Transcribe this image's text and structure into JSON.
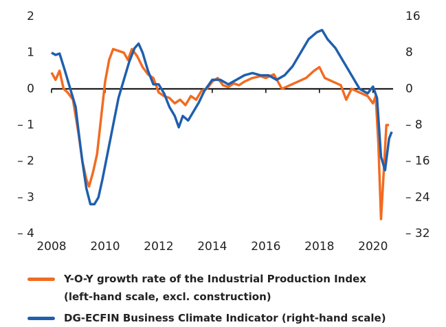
{
  "chart_data": {
    "type": "line",
    "xlim": [
      2008,
      2020.75
    ],
    "xticks": [
      2008,
      2010,
      2012,
      2014,
      2016,
      2018,
      2020
    ],
    "ylim": [
      -4,
      2
    ],
    "yticks": [
      {
        "value": -4,
        "label": "– 4"
      },
      {
        "value": -3,
        "label": "– 3"
      },
      {
        "value": -2,
        "label": "– 2"
      },
      {
        "value": -1,
        "label": "– 1"
      },
      0,
      1,
      2
    ],
    "y2lim": [
      -32,
      16
    ],
    "y2ticks": [
      {
        "value": -32,
        "label": "– 32"
      },
      {
        "value": -24,
        "label": "– 24"
      },
      {
        "value": -16,
        "label": "– 16"
      },
      {
        "value": -8,
        "label": "– 8"
      },
      0,
      8,
      16
    ],
    "series": [
      {
        "name": "Y-O-Y growth rate of the Industrial Production Index\n(left-hand scale, excl. construction)",
        "color": "#f26b21",
        "axis": "y",
        "x": [
          2008.0,
          2008.15,
          2008.3,
          2008.45,
          2008.6,
          2008.8,
          2009.0,
          2009.15,
          2009.3,
          2009.4,
          2009.55,
          2009.7,
          2009.85,
          2010.0,
          2010.15,
          2010.3,
          2010.5,
          2010.7,
          2010.85,
          2011.0,
          2011.2,
          2011.4,
          2011.6,
          2011.8,
          2012.0,
          2012.2,
          2012.4,
          2012.6,
          2012.8,
          2013.0,
          2013.2,
          2013.4,
          2013.6,
          2013.8,
          2014.0,
          2014.2,
          2014.4,
          2014.6,
          2014.8,
          2015.0,
          2015.2,
          2015.5,
          2015.8,
          2016.0,
          2016.3,
          2016.6,
          2016.9,
          2017.2,
          2017.5,
          2017.8,
          2018.0,
          2018.2,
          2018.5,
          2018.8,
          2019.0,
          2019.2,
          2019.5,
          2019.8,
          2020.0,
          2020.1,
          2020.2,
          2020.3,
          2020.4,
          2020.5,
          2020.6
        ],
        "values": [
          0.45,
          0.25,
          0.5,
          0.0,
          -0.1,
          -0.3,
          -1.2,
          -2.0,
          -2.5,
          -2.7,
          -2.3,
          -1.8,
          -0.8,
          0.2,
          0.8,
          1.1,
          1.05,
          1.0,
          0.8,
          1.1,
          0.9,
          0.6,
          0.4,
          0.3,
          -0.1,
          -0.2,
          -0.25,
          -0.4,
          -0.3,
          -0.45,
          -0.2,
          -0.3,
          -0.05,
          0.0,
          0.2,
          0.3,
          0.1,
          0.05,
          0.15,
          0.1,
          0.2,
          0.3,
          0.35,
          0.3,
          0.4,
          0.0,
          0.1,
          0.2,
          0.3,
          0.5,
          0.6,
          0.3,
          0.2,
          0.1,
          -0.3,
          0.0,
          -0.1,
          -0.2,
          -0.4,
          -0.2,
          -1.5,
          -3.6,
          -2.3,
          -1.0,
          -1.0
        ]
      },
      {
        "name": "DG-ECFIN Business Climate Indicator (right-hand scale)",
        "color": "#1f5fad",
        "axis": "y2",
        "x": [
          2008.0,
          2008.15,
          2008.3,
          2008.5,
          2008.7,
          2008.9,
          2009.0,
          2009.15,
          2009.3,
          2009.45,
          2009.6,
          2009.75,
          2009.9,
          2010.1,
          2010.3,
          2010.5,
          2010.7,
          2010.9,
          2011.1,
          2011.25,
          2011.4,
          2011.6,
          2011.8,
          2012.0,
          2012.2,
          2012.4,
          2012.6,
          2012.75,
          2012.9,
          2013.1,
          2013.3,
          2013.5,
          2013.7,
          2014.0,
          2014.3,
          2014.6,
          2014.9,
          2015.2,
          2015.5,
          2015.8,
          2016.1,
          2016.4,
          2016.7,
          2017.0,
          2017.3,
          2017.6,
          2017.9,
          2018.1,
          2018.3,
          2018.6,
          2018.9,
          2019.2,
          2019.5,
          2019.8,
          2020.0,
          2020.15,
          2020.3,
          2020.45,
          2020.6,
          2020.7
        ],
        "values": [
          8,
          7.5,
          7.8,
          4,
          0,
          -4,
          -9,
          -16,
          -22,
          -25.5,
          -25.5,
          -24,
          -20,
          -14,
          -8,
          -2,
          2,
          6,
          9,
          10,
          8,
          4,
          1,
          1,
          -1,
          -4,
          -6,
          -8.5,
          -6,
          -7,
          -5,
          -3,
          -0.5,
          2,
          2,
          1,
          2,
          3,
          3.5,
          3,
          3,
          2,
          3,
          5,
          8,
          11,
          12.5,
          13,
          11,
          9,
          6,
          3,
          0,
          -1,
          0.5,
          -2,
          -15,
          -18,
          -11,
          -9.5
        ]
      }
    ]
  }
}
